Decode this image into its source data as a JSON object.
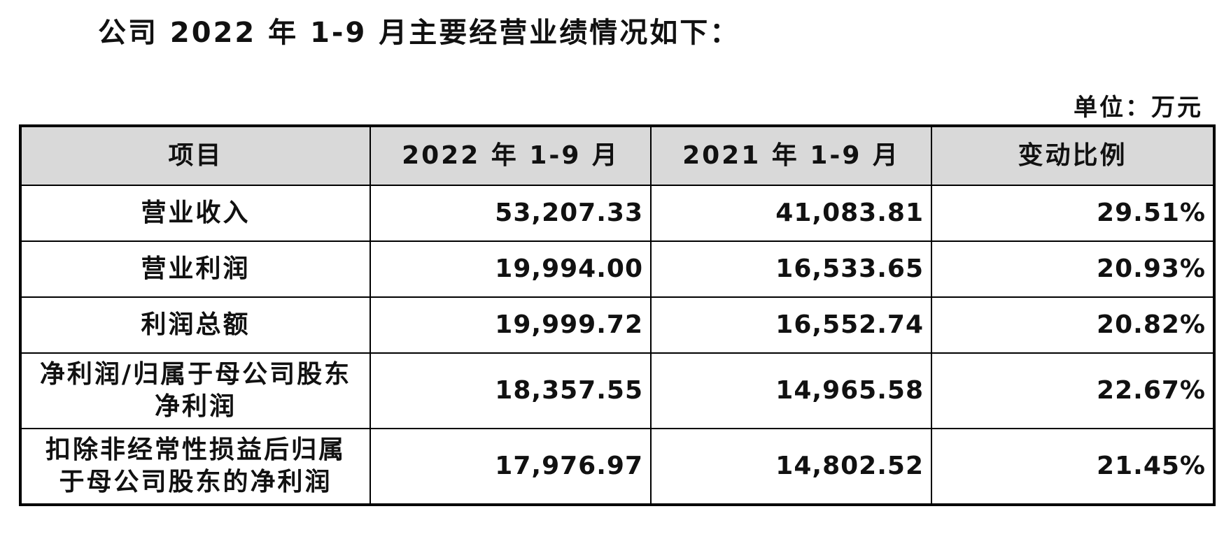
{
  "title": "公司 2022 年 1-9 月主要经营业绩情况如下：",
  "unit": "单位：万元",
  "table": {
    "header": [
      "项目",
      "2022 年 1-9 月",
      "2021 年 1-9 月",
      "变动比例"
    ],
    "rows": [
      [
        "营业收入",
        "53,207.33",
        "41,083.81",
        "29.51%"
      ],
      [
        "营业利润",
        "19,994.00",
        "16,533.65",
        "20.93%"
      ],
      [
        "利润总额",
        "19,999.72",
        "16,552.74",
        "20.82%"
      ],
      [
        "净利润/归属于母公司股东净利润",
        "18,357.55",
        "14,965.58",
        "22.67%"
      ],
      [
        "扣除非经常性损益后归属于母公司股东的净利润",
        "17,976.97",
        "14,802.52",
        "21.45%"
      ]
    ]
  }
}
